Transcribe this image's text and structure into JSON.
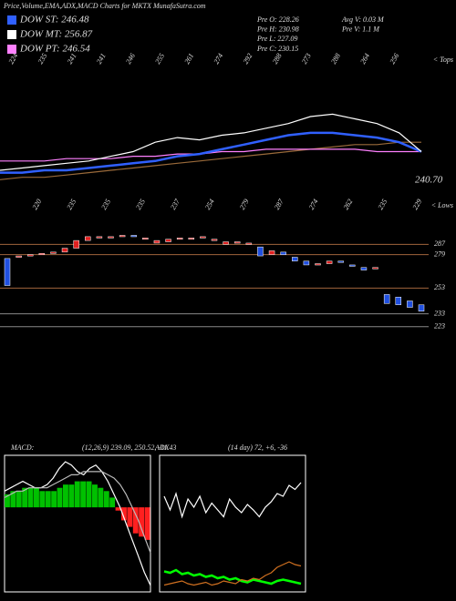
{
  "header": {
    "title": "Price,Volume,EMA,ADX,MACD Charts for MKTX  MunafaSutra.com"
  },
  "legend": [
    {
      "label": "DOW ST: 246.48",
      "color": "#3060ff"
    },
    {
      "label": "DOW MT: 256.87",
      "color": "#ffffff"
    },
    {
      "label": "DOW PT: 246.54",
      "color": "#ff80ff"
    }
  ],
  "quote": [
    "Pre  O: 228.26",
    "Pre  H: 230.98",
    "Pre  L: 227.09",
    "Pre  C: 230.15"
  ],
  "volume": [
    "Avg V: 0.03 M",
    "Pre  V: 1.1 M"
  ],
  "tops": {
    "label": "< Tops",
    "values": [
      "224",
      "235",
      "241",
      "241",
      "246",
      "255",
      "261",
      "274",
      "292",
      "288",
      "273",
      "288",
      "264",
      "256"
    ]
  },
  "lows": {
    "label": "< Lows",
    "values": [
      "220",
      "235",
      "235",
      "235",
      "237",
      "254",
      "279",
      "287",
      "274",
      "262",
      "235",
      "229"
    ]
  },
  "last_price": "240.70",
  "ema_panel": {
    "ylim": [
      225,
      262
    ],
    "series": [
      {
        "color": "#9a6a3a",
        "values": [
          228,
          229,
          229,
          230,
          231,
          232,
          233,
          234,
          235,
          236,
          237,
          238,
          239,
          240,
          241,
          242,
          243,
          243,
          244,
          244
        ]
      },
      {
        "color": "#ff80ff",
        "values": [
          236,
          236,
          236,
          237,
          237,
          237,
          238,
          238,
          239,
          239,
          240,
          240,
          241,
          241,
          241,
          241,
          241,
          240,
          240,
          240
        ]
      },
      {
        "color": "#3060ff",
        "values": [
          231,
          231,
          232,
          232,
          233,
          234,
          235,
          236,
          238,
          239,
          241,
          243,
          245,
          247,
          248,
          248,
          247,
          246,
          244,
          240
        ]
      },
      {
        "color": "#ffffff",
        "values": [
          232,
          233,
          234,
          235,
          236,
          238,
          240,
          244,
          246,
          245,
          247,
          248,
          250,
          252,
          255,
          256,
          254,
          252,
          248,
          240
        ]
      }
    ]
  },
  "candles": {
    "ylim": [
      215,
      300
    ],
    "levels": [
      287,
      279,
      253,
      233,
      223
    ],
    "open": [
      276,
      277,
      278,
      279,
      280,
      281,
      284,
      290,
      293,
      292,
      293,
      294,
      292,
      288,
      289,
      291,
      292,
      292,
      290,
      287,
      289,
      287,
      285,
      279,
      281,
      277,
      274,
      272,
      272,
      274,
      271,
      269,
      268,
      248,
      246,
      243,
      240
    ],
    "close": [
      255,
      278,
      279,
      280,
      281,
      284,
      290,
      293,
      293,
      293,
      294,
      293,
      292,
      290,
      291,
      292,
      292,
      293,
      291,
      289,
      289,
      288,
      278,
      282,
      279,
      274,
      271,
      272,
      274,
      273,
      270,
      267,
      269,
      241,
      240,
      238,
      235
    ]
  },
  "macd": {
    "label": "MACD:",
    "params": "(12,26,9) 239.09, 250.52, -11.43",
    "ylim": [
      -26,
      16
    ],
    "histogram": [
      4,
      5,
      5,
      6,
      6,
      6,
      5,
      5,
      5,
      6,
      7,
      7,
      8,
      8,
      8,
      7,
      6,
      5,
      3,
      -1,
      -4,
      -6,
      -8,
      -9,
      -10
    ],
    "macd_line": [
      5,
      6,
      7,
      8,
      7,
      6,
      6,
      7,
      9,
      12,
      14,
      13,
      11,
      10,
      12,
      13,
      11,
      8,
      4,
      0,
      -5,
      -10,
      -15,
      -20,
      -24
    ],
    "signal_line": [
      3,
      4,
      5,
      5,
      6,
      6,
      6,
      6,
      7,
      8,
      9,
      10,
      10,
      11,
      11,
      11,
      11,
      10,
      9,
      7,
      4,
      0,
      -4,
      -9,
      -14
    ]
  },
  "adx": {
    "label": "ADX",
    "params": "(14 day) 72, +6, -36",
    "ylim": [
      0,
      100
    ],
    "series": [
      {
        "color": "#ffffff",
        "values": [
          70,
          60,
          72,
          55,
          68,
          62,
          70,
          58,
          65,
          60,
          55,
          68,
          62,
          58,
          64,
          60,
          55,
          62,
          66,
          72,
          70,
          78,
          75,
          80
        ]
      },
      {
        "color": "#00ff00",
        "values": [
          15,
          14,
          16,
          13,
          14,
          12,
          13,
          11,
          12,
          10,
          11,
          9,
          10,
          8,
          7,
          9,
          8,
          7,
          6,
          8,
          9,
          8,
          7,
          6
        ]
      },
      {
        "color": "#d07020",
        "values": [
          5,
          6,
          7,
          8,
          6,
          5,
          6,
          7,
          5,
          6,
          8,
          7,
          6,
          9,
          8,
          10,
          9,
          12,
          14,
          18,
          20,
          22,
          20,
          19
        ]
      }
    ]
  }
}
